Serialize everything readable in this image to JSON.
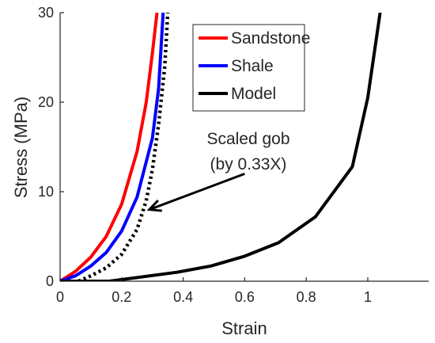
{
  "chart_data": {
    "type": "line",
    "xlabel": "Strain",
    "ylabel": "Stress (MPa)",
    "xlim": [
      0,
      1.2
    ],
    "ylim": [
      0,
      30
    ],
    "xticks": [
      0,
      0.2,
      0.4,
      0.6,
      0.8,
      1
    ],
    "yticks": [
      0,
      10,
      20,
      30
    ],
    "xtick_labels": [
      "0",
      "0.2",
      "0.4",
      "0.6",
      "0.8",
      "1"
    ],
    "ytick_labels": [
      "0",
      "10",
      "20",
      "30"
    ],
    "grid": false,
    "legend_position": "top-right",
    "series": [
      {
        "name": "Sandstone",
        "color": "#ff0000",
        "style": "solid",
        "x": [
          0,
          0.05,
          0.1,
          0.15,
          0.2,
          0.25,
          0.28,
          0.3,
          0.315
        ],
        "y": [
          0,
          1.1,
          2.7,
          5.0,
          8.6,
          14.5,
          20.0,
          25.5,
          30
        ]
      },
      {
        "name": "Shale",
        "color": "#0000ff",
        "style": "solid",
        "x": [
          0,
          0.05,
          0.1,
          0.15,
          0.2,
          0.25,
          0.3,
          0.32,
          0.335
        ],
        "y": [
          0,
          0.6,
          1.7,
          3.2,
          5.6,
          9.4,
          16.0,
          21.5,
          30
        ]
      },
      {
        "name": "Scaled gob",
        "color": "#000000",
        "style": "dotted",
        "x": [
          0.06,
          0.1,
          0.15,
          0.2,
          0.25,
          0.28,
          0.3,
          0.32,
          0.34,
          0.35
        ],
        "y": [
          0,
          0.6,
          1.5,
          3.0,
          5.8,
          9.0,
          12.5,
          17.5,
          24.0,
          30
        ]
      },
      {
        "name": "Model",
        "color": "#000000",
        "style": "solid",
        "x": [
          0,
          0.16,
          0.38,
          0.49,
          0.6,
          0.71,
          0.83,
          0.95,
          1.0,
          1.04
        ],
        "y": [
          0,
          0,
          1.0,
          1.7,
          2.8,
          4.3,
          7.2,
          12.8,
          20.5,
          30
        ]
      }
    ],
    "legend_entries": [
      "Sandstone",
      "Shale",
      "Model"
    ],
    "annotation": {
      "line1": "Scaled gob",
      "line2": "(by 0.33X)",
      "arrow_from": [
        0.6,
        12.0
      ],
      "arrow_to": [
        0.29,
        8.0
      ]
    }
  }
}
